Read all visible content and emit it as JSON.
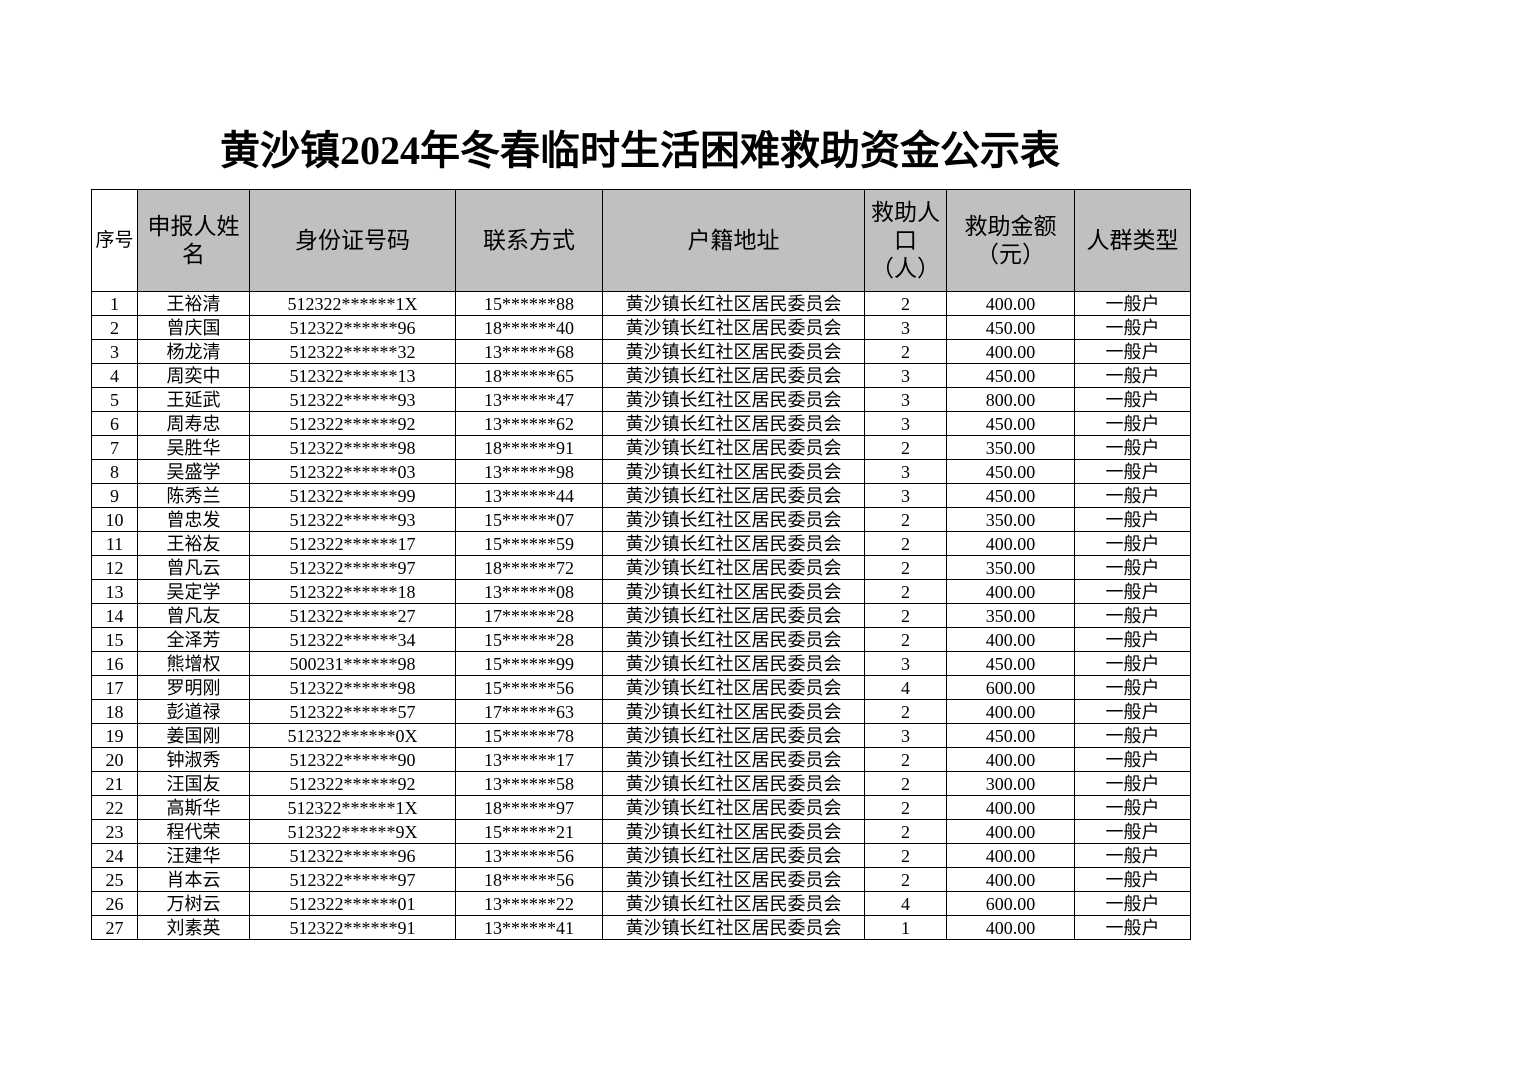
{
  "title": "黄沙镇2024年冬春临时生活困难救助资金公示表",
  "headers": [
    "序号",
    "申报人姓名",
    "身份证号码",
    "联系方式",
    "户籍地址",
    "救助人口（人）",
    "救助金额（元）",
    "人群类型"
  ],
  "rows": [
    [
      "1",
      "王裕清",
      "512322******1X",
      "15******88",
      "黄沙镇长红社区居民委员会",
      "2",
      "400.00",
      "一般户"
    ],
    [
      "2",
      "曾庆国",
      "512322******96",
      "18******40",
      "黄沙镇长红社区居民委员会",
      "3",
      "450.00",
      "一般户"
    ],
    [
      "3",
      "杨龙清",
      "512322******32",
      "13******68",
      "黄沙镇长红社区居民委员会",
      "2",
      "400.00",
      "一般户"
    ],
    [
      "4",
      "周奕中",
      "512322******13",
      "18******65",
      "黄沙镇长红社区居民委员会",
      "3",
      "450.00",
      "一般户"
    ],
    [
      "5",
      "王延武",
      "512322******93",
      "13******47",
      "黄沙镇长红社区居民委员会",
      "3",
      "800.00",
      "一般户"
    ],
    [
      "6",
      "周寿忠",
      "512322******92",
      "13******62",
      "黄沙镇长红社区居民委员会",
      "3",
      "450.00",
      "一般户"
    ],
    [
      "7",
      "吴胜华",
      "512322******98",
      "18******91",
      "黄沙镇长红社区居民委员会",
      "2",
      "350.00",
      "一般户"
    ],
    [
      "8",
      "吴盛学",
      "512322******03",
      "13******98",
      "黄沙镇长红社区居民委员会",
      "3",
      "450.00",
      "一般户"
    ],
    [
      "9",
      "陈秀兰",
      "512322******99",
      "13******44",
      "黄沙镇长红社区居民委员会",
      "3",
      "450.00",
      "一般户"
    ],
    [
      "10",
      "曾忠发",
      "512322******93",
      "15******07",
      "黄沙镇长红社区居民委员会",
      "2",
      "350.00",
      "一般户"
    ],
    [
      "11",
      "王裕友",
      "512322******17",
      "15******59",
      "黄沙镇长红社区居民委员会",
      "2",
      "400.00",
      "一般户"
    ],
    [
      "12",
      "曾凡云",
      "512322******97",
      "18******72",
      "黄沙镇长红社区居民委员会",
      "2",
      "350.00",
      "一般户"
    ],
    [
      "13",
      "吴定学",
      "512322******18",
      "13******08",
      "黄沙镇长红社区居民委员会",
      "2",
      "400.00",
      "一般户"
    ],
    [
      "14",
      "曾凡友",
      "512322******27",
      "17******28",
      "黄沙镇长红社区居民委员会",
      "2",
      "350.00",
      "一般户"
    ],
    [
      "15",
      "全泽芳",
      "512322******34",
      "15******28",
      "黄沙镇长红社区居民委员会",
      "2",
      "400.00",
      "一般户"
    ],
    [
      "16",
      "熊增权",
      "500231******98",
      "15******99",
      "黄沙镇长红社区居民委员会",
      "3",
      "450.00",
      "一般户"
    ],
    [
      "17",
      "罗明刚",
      "512322******98",
      "15******56",
      "黄沙镇长红社区居民委员会",
      "4",
      "600.00",
      "一般户"
    ],
    [
      "18",
      "彭道禄",
      "512322******57",
      "17******63",
      "黄沙镇长红社区居民委员会",
      "2",
      "400.00",
      "一般户"
    ],
    [
      "19",
      "姜国刚",
      "512322******0X",
      "15******78",
      "黄沙镇长红社区居民委员会",
      "3",
      "450.00",
      "一般户"
    ],
    [
      "20",
      "钟淑秀",
      "512322******90",
      "13******17",
      "黄沙镇长红社区居民委员会",
      "2",
      "400.00",
      "一般户"
    ],
    [
      "21",
      "汪国友",
      "512322******92",
      "13******58",
      "黄沙镇长红社区居民委员会",
      "2",
      "300.00",
      "一般户"
    ],
    [
      "22",
      "高斯华",
      "512322******1X",
      "18******97",
      "黄沙镇长红社区居民委员会",
      "2",
      "400.00",
      "一般户"
    ],
    [
      "23",
      "程代荣",
      "512322******9X",
      "15******21",
      "黄沙镇长红社区居民委员会",
      "2",
      "400.00",
      "一般户"
    ],
    [
      "24",
      "汪建华",
      "512322******96",
      "13******56",
      "黄沙镇长红社区居民委员会",
      "2",
      "400.00",
      "一般户"
    ],
    [
      "25",
      "肖本云",
      "512322******97",
      "18******56",
      "黄沙镇长红社区居民委员会",
      "2",
      "400.00",
      "一般户"
    ],
    [
      "26",
      "万树云",
      "512322******01",
      "13******22",
      "黄沙镇长红社区居民委员会",
      "4",
      "600.00",
      "一般户"
    ],
    [
      "27",
      "刘素英",
      "512322******91",
      "13******41",
      "黄沙镇长红社区居民委员会",
      "1",
      "400.00",
      "一般户"
    ]
  ]
}
